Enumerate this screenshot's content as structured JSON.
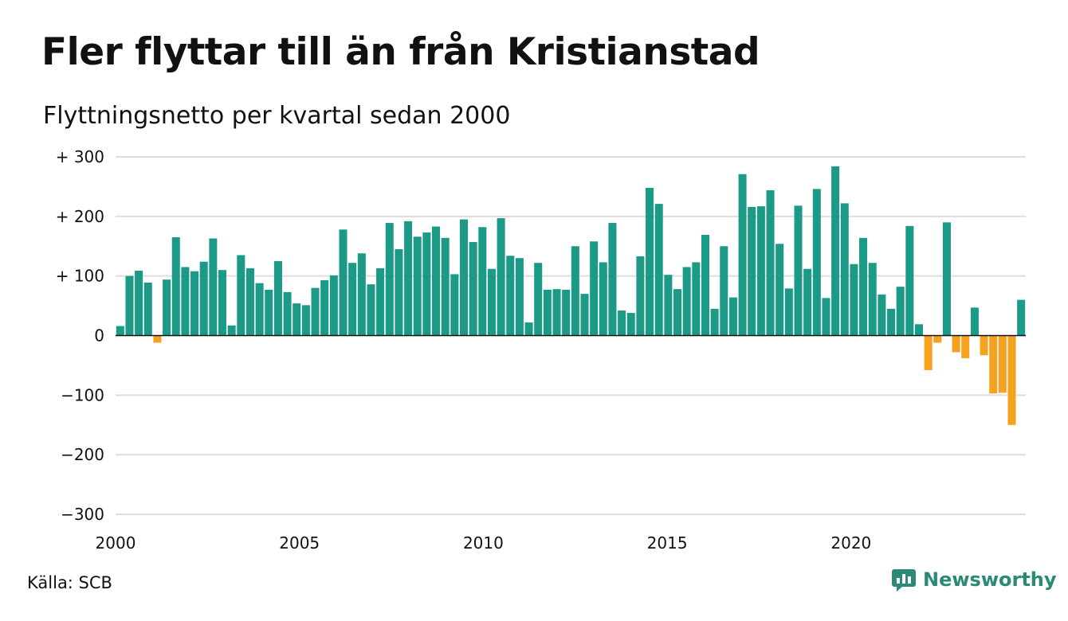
{
  "title": "Fler flyttar till än från Kristianstad",
  "subtitle": "Flyttningsnetto per kvartal sedan 2000",
  "source": "Källa: SCB",
  "brand": {
    "name": "Newsworthy",
    "icon": "newsworthy-logo-icon"
  },
  "colors": {
    "positive": "#1a9a87",
    "negative": "#f6a21e",
    "grid": "#dddddd",
    "axis": "#111111"
  },
  "chart_data": {
    "type": "bar",
    "title": "Fler flyttar till än från Kristianstad",
    "subtitle": "Flyttningsnetto per kvartal sedan 2000",
    "xlabel": "",
    "ylabel": "",
    "ylim": [
      -300,
      300
    ],
    "x_start": 2000,
    "x_end": 2024.75,
    "x_ticks": [
      "2000",
      "2005",
      "2010",
      "2015",
      "2020"
    ],
    "y_ticks": [
      {
        "value": 300,
        "label": "+ 300"
      },
      {
        "value": 200,
        "label": "+ 200"
      },
      {
        "value": 100,
        "label": "+ 100"
      },
      {
        "value": 0,
        "label": "0"
      },
      {
        "value": -100,
        "label": "−100"
      },
      {
        "value": -200,
        "label": "−200"
      },
      {
        "value": -300,
        "label": "−300"
      }
    ],
    "grid": true,
    "values": [
      16,
      100,
      109,
      89,
      -12,
      94,
      165,
      115,
      108,
      124,
      163,
      110,
      17,
      135,
      113,
      88,
      77,
      125,
      73,
      54,
      51,
      80,
      93,
      101,
      178,
      122,
      138,
      86,
      113,
      189,
      145,
      192,
      166,
      173,
      183,
      164,
      103,
      195,
      157,
      182,
      112,
      197,
      134,
      130,
      22,
      122,
      77,
      78,
      77,
      150,
      70,
      158,
      123,
      189,
      42,
      38,
      133,
      248,
      221,
      102,
      78,
      115,
      123,
      169,
      45,
      150,
      64,
      271,
      216,
      217,
      244,
      154,
      79,
      218,
      112,
      246,
      63,
      284,
      222,
      120,
      164,
      122,
      69,
      45,
      82,
      184,
      19,
      -58,
      -12,
      190,
      -28,
      -38,
      47,
      -33,
      -97,
      -96,
      -150,
      60
    ]
  }
}
